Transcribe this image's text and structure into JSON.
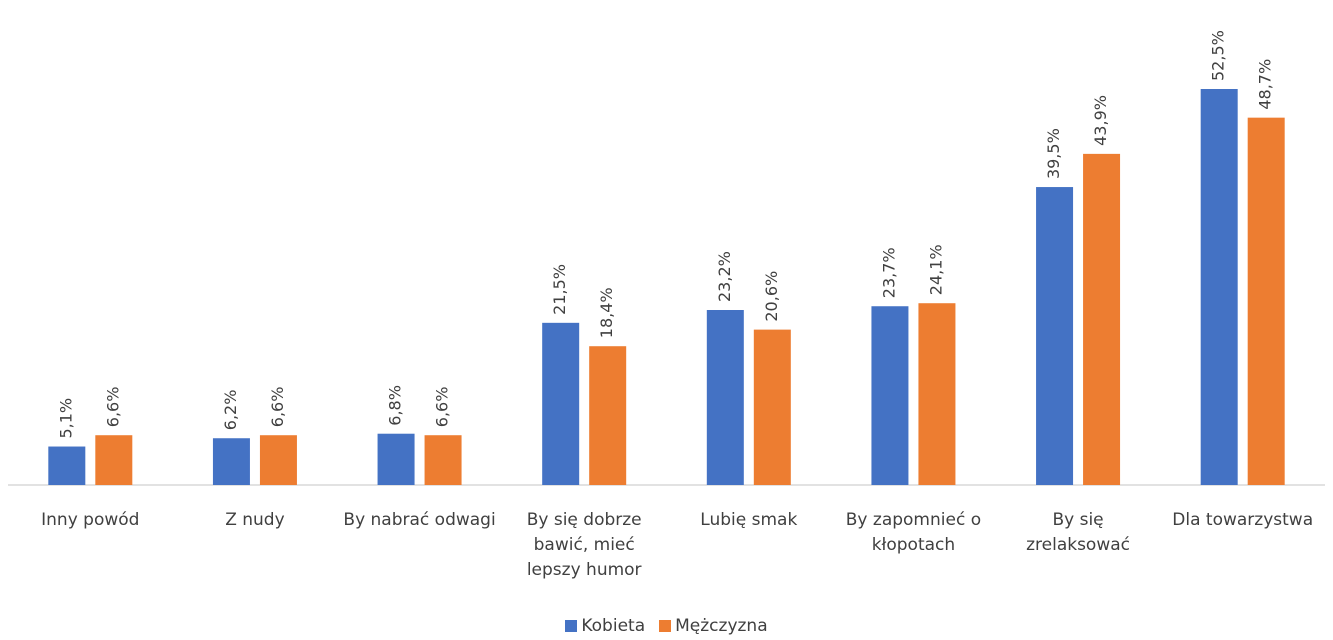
{
  "chart_data": {
    "type": "bar",
    "categories": [
      "Inny powód",
      "Z nudy",
      "By nabrać odwagi",
      "By się dobrze bawić, mieć lepszy humor",
      "Lubię smak",
      "By zapomnieć o kłopotach",
      "By się zrelaksować",
      "Dla towarzystwa"
    ],
    "series": [
      {
        "name": "Kobieta",
        "color": "#4472c4",
        "values": [
          5.1,
          6.2,
          6.8,
          21.5,
          23.2,
          23.7,
          39.5,
          52.5
        ],
        "value_labels": [
          "5,1%",
          "6,2%",
          "6,8%",
          "21,5%",
          "23,2%",
          "23,7%",
          "39,5%",
          "52,5%"
        ]
      },
      {
        "name": "Mężczyzna",
        "color": "#ed7d31",
        "values": [
          6.6,
          6.6,
          6.6,
          18.4,
          20.6,
          24.1,
          43.9,
          48.7
        ],
        "value_labels": [
          "6,6%",
          "6,6%",
          "6,6%",
          "18,4%",
          "20,6%",
          "24,1%",
          "43,9%",
          "48,7%"
        ]
      }
    ],
    "legend": "bottom"
  }
}
